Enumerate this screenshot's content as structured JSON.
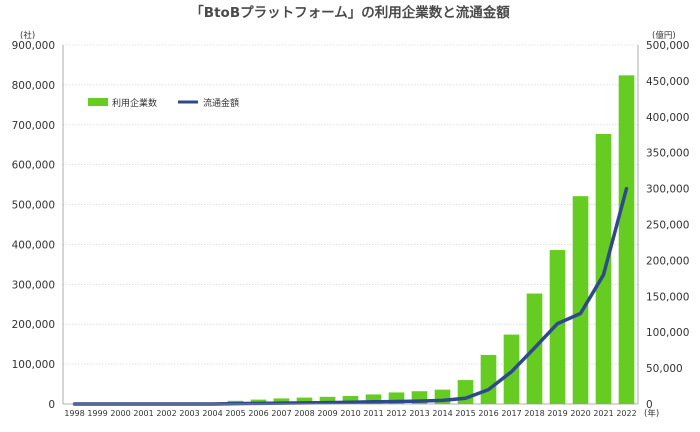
{
  "chart_data": {
    "type": "bar+line",
    "title": "「BtoBプラットフォーム」の利用企業数と流通金額",
    "y_left_unit": "(社)",
    "y_right_unit": "(億円)",
    "x_unit": "(年)",
    "y_left_lim": [
      0,
      900000
    ],
    "y_right_lim": [
      0,
      500000
    ],
    "y_left_ticks": [
      "0",
      "100,000",
      "200,000",
      "300,000",
      "400,000",
      "500,000",
      "600,000",
      "700,000",
      "800,000",
      "900,000"
    ],
    "y_right_ticks": [
      "0",
      "50,000",
      "100,000",
      "150,000",
      "200,000",
      "250,000",
      "300,000",
      "350,000",
      "400,000",
      "450,000",
      "500,000"
    ],
    "categories": [
      "1998",
      "1999",
      "2000",
      "2001",
      "2002",
      "2003",
      "2004",
      "2005",
      "2006",
      "2007",
      "2008",
      "2009",
      "2010",
      "2011",
      "2012",
      "2013",
      "2014",
      "2015",
      "2016",
      "2017",
      "2018",
      "2019",
      "2020",
      "2021",
      "2022"
    ],
    "grid": true,
    "legend_position": "top-left",
    "colors": {
      "bars": "#66cc22",
      "line": "#2e4a8c",
      "grid": "#cccccc"
    },
    "series": [
      {
        "name": "利用企業数",
        "type": "bar",
        "axis": "left",
        "values": [
          0,
          0,
          0,
          0,
          0,
          0,
          0,
          8000,
          11000,
          14000,
          16000,
          18000,
          20000,
          24000,
          29000,
          32000,
          36000,
          60000,
          123000,
          174000,
          277000,
          386000,
          521000,
          677000,
          824000
        ]
      },
      {
        "name": "流通金額",
        "type": "line",
        "axis": "right",
        "values": [
          0,
          0,
          0,
          0,
          0,
          0,
          0,
          500,
          800,
          1200,
          1600,
          2000,
          2500,
          3000,
          3500,
          4000,
          5000,
          8000,
          20000,
          45000,
          78000,
          112000,
          126000,
          180000,
          300000
        ]
      }
    ]
  }
}
